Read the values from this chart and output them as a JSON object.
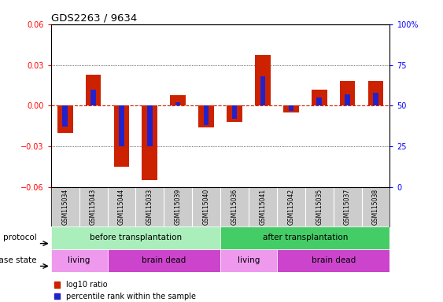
{
  "title": "GDS2263 / 9634",
  "samples": [
    "GSM115034",
    "GSM115043",
    "GSM115044",
    "GSM115033",
    "GSM115039",
    "GSM115040",
    "GSM115036",
    "GSM115041",
    "GSM115042",
    "GSM115035",
    "GSM115037",
    "GSM115038"
  ],
  "log10_ratio": [
    -0.02,
    0.023,
    -0.045,
    -0.055,
    0.008,
    -0.016,
    -0.012,
    0.037,
    -0.005,
    0.012,
    0.018,
    0.018
  ],
  "percentile_rank": [
    37,
    60,
    25,
    25,
    52,
    38,
    42,
    68,
    47,
    55,
    57,
    58
  ],
  "ylim": [
    -0.06,
    0.06
  ],
  "yticks_left": [
    -0.06,
    -0.03,
    0,
    0.03,
    0.06
  ],
  "yticks_right": [
    0,
    25,
    50,
    75,
    100
  ],
  "bar_color_red": "#cc2200",
  "bar_color_blue": "#2222cc",
  "protocol_before_color": "#aaeebb",
  "protocol_after_color": "#44cc66",
  "disease_living_color": "#ee99ee",
  "disease_brain_color": "#cc44cc",
  "protocol_before_label": "before transplantation",
  "protocol_after_label": "after transplantation",
  "disease_living1_label": "living",
  "disease_braindead1_label": "brain dead",
  "disease_living2_label": "living",
  "disease_braindead2_label": "brain dead",
  "protocol_label": "protocol",
  "disease_label": "disease state",
  "legend_red": "log10 ratio",
  "legend_blue": "percentile rank within the sample",
  "before_transplant_count": 6,
  "after_transplant_count": 6,
  "living1_count": 2,
  "braindead1_count": 4,
  "living2_count": 2,
  "braindead2_count": 4,
  "zero_line_color": "#cc2200",
  "tick_area_color": "#cccccc"
}
